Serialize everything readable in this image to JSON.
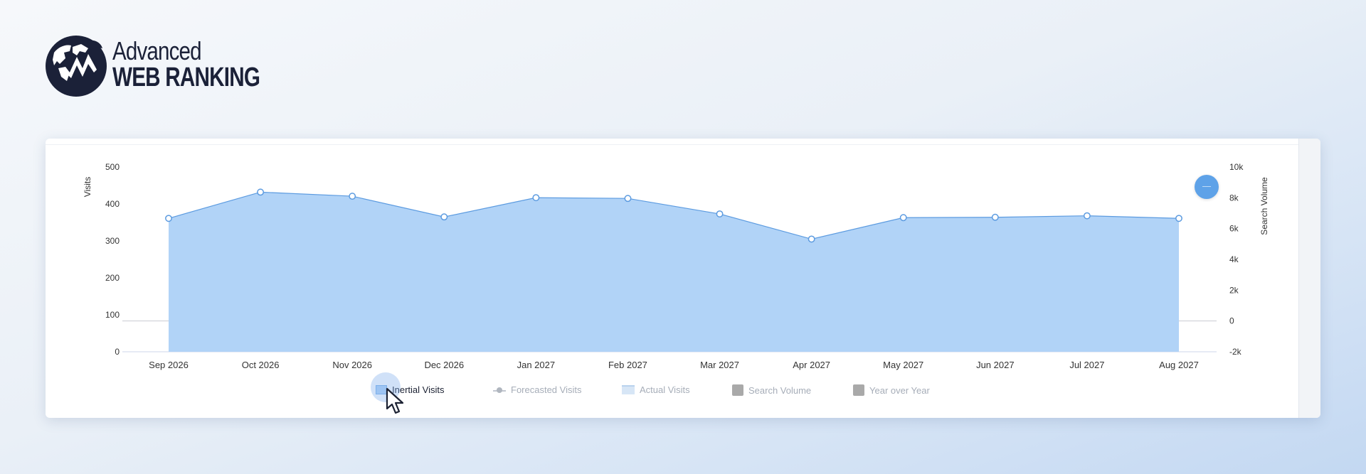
{
  "brand": {
    "line1": "Advanced",
    "line2": "WEB RANKING"
  },
  "colors": {
    "area_fill": "#b1d3f7",
    "line": "#5c9be0",
    "axis_text": "#333333",
    "logo_dark": "#1b2138"
  },
  "legend": [
    {
      "label": "Inertial Visits",
      "icon": "area-swatch-icon",
      "active": true
    },
    {
      "label": "Forecasted Visits",
      "icon": "line-marker-icon",
      "active": false
    },
    {
      "label": "Actual Visits",
      "icon": "area-light-swatch-icon",
      "active": false
    },
    {
      "label": "Search Volume",
      "icon": "gray-square-icon",
      "active": false
    },
    {
      "label": "Year over Year",
      "icon": "gray-square-icon",
      "active": false
    }
  ],
  "chart_data": {
    "type": "area",
    "categories": [
      "Sep 2026",
      "Oct 2026",
      "Nov 2026",
      "Dec 2026",
      "Jan 2027",
      "Feb 2027",
      "Mar 2027",
      "Apr 2027",
      "May 2027",
      "Jun 2027",
      "Jul 2027",
      "Aug 2027"
    ],
    "series": [
      {
        "name": "Inertial Visits",
        "axis": "left",
        "values": [
          361,
          432,
          421,
          365,
          417,
          415,
          373,
          305,
          363,
          364,
          368,
          361
        ]
      }
    ],
    "ylabel": "Visits",
    "ylabel_right": "Search Volume",
    "ylim": [
      0,
      500
    ],
    "yticks": [
      "0",
      "100",
      "200",
      "300",
      "400",
      "500"
    ],
    "ylim_right": [
      -2000,
      10000
    ],
    "yticks_right": [
      "-2k",
      "0",
      "2k",
      "4k",
      "6k",
      "8k",
      "10k"
    ],
    "grid": false,
    "legend_position": "bottom"
  }
}
